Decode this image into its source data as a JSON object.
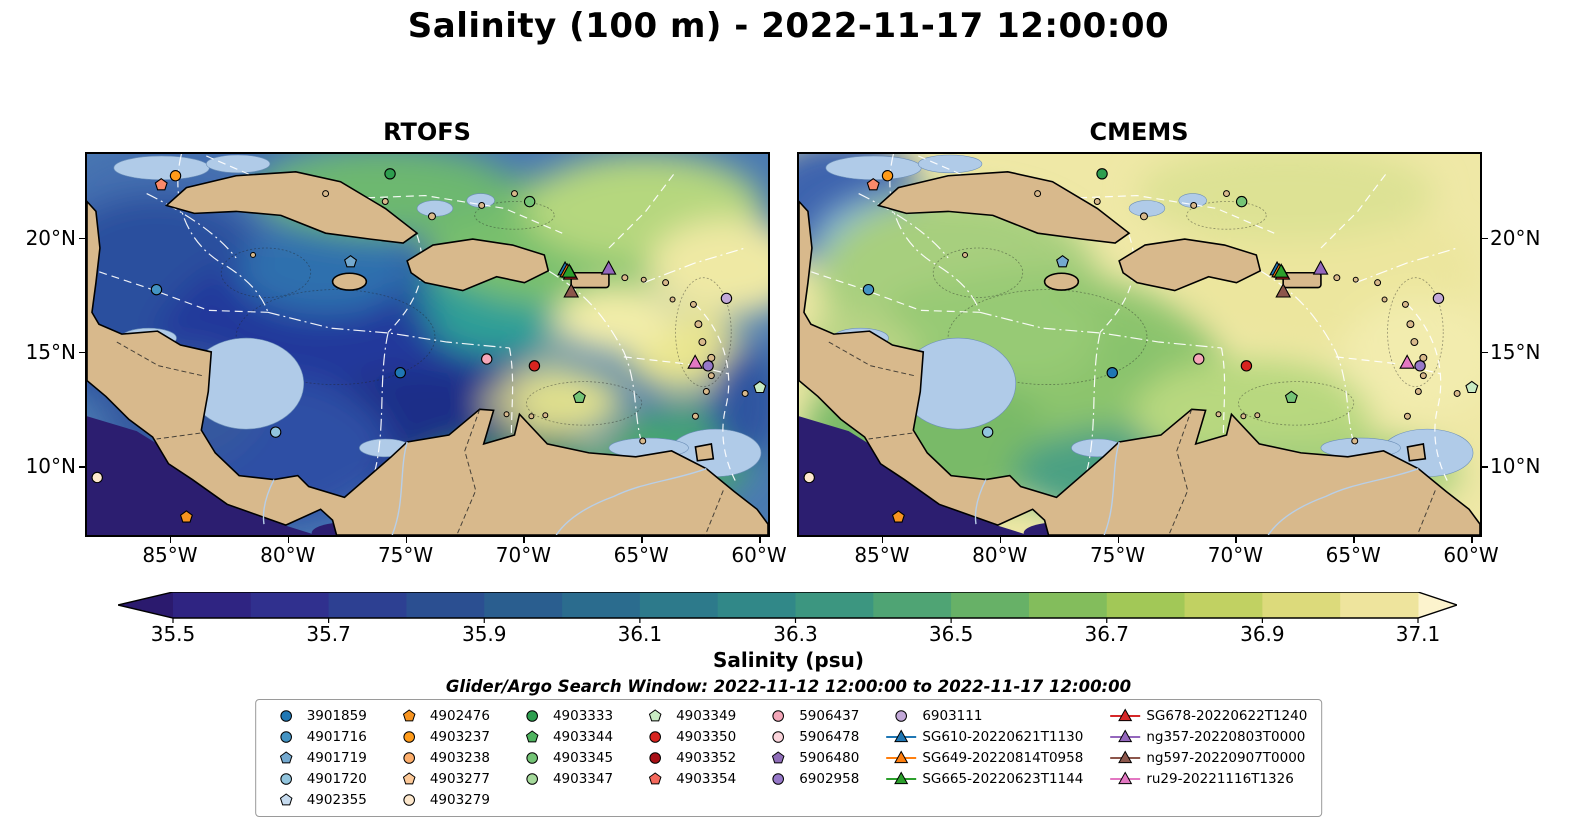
{
  "figure_title": "Salinity (100 m) - 2022-11-17 12:00:00",
  "panels": [
    {
      "title": "RTOFS"
    },
    {
      "title": "CMEMS"
    }
  ],
  "axes": {
    "lat_ticks": [
      {
        "label": "20°N",
        "pct": 22.3
      },
      {
        "label": "15°N",
        "pct": 51.9
      },
      {
        "label": "10°N",
        "pct": 81.6
      }
    ],
    "lon_ticks": [
      {
        "label": "85°W",
        "pct": 12.4
      },
      {
        "label": "80°W",
        "pct": 29.6
      },
      {
        "label": "75°W",
        "pct": 46.8
      },
      {
        "label": "70°W",
        "pct": 64.0
      },
      {
        "label": "65°W",
        "pct": 81.2
      },
      {
        "label": "60°W",
        "pct": 98.4
      }
    ]
  },
  "colorbar": {
    "label": "Salinity (psu)",
    "tick_labels": [
      "35.5",
      "35.7",
      "35.9",
      "36.1",
      "36.3",
      "36.5",
      "36.7",
      "36.9",
      "37.1"
    ],
    "under_color": "#2b1a6e",
    "over_color": "#fcf3cd",
    "segment_colors": [
      "#2f2482",
      "#30308e",
      "#2d4092",
      "#2b4f91",
      "#2a5e8f",
      "#2b6c8e",
      "#2d7a8b",
      "#318888",
      "#3c9680",
      "#4fa474",
      "#67b167",
      "#83bd5c",
      "#a2c857",
      "#c1d162",
      "#dcda7b",
      "#eee49d"
    ]
  },
  "search_window_text": "Glider/Argo Search Window: 2022-11-12 12:00:00 to 2022-11-17 12:00:00",
  "legend": {
    "columns": [
      {
        "items": [
          {
            "label": "3901859",
            "marker": "circle",
            "color": "#1f77b4"
          },
          {
            "label": "4901716",
            "marker": "circle",
            "color": "#4393c3"
          },
          {
            "label": "4901719",
            "marker": "pentagon",
            "color": "#74a9cf"
          },
          {
            "label": "4901720",
            "marker": "circle",
            "color": "#92c5de"
          },
          {
            "label": "4902355",
            "marker": "pentagon",
            "color": "#c6dbef"
          }
        ]
      },
      {
        "items": [
          {
            "label": "4902476",
            "marker": "pentagon",
            "color": "#f79420"
          },
          {
            "label": "4903237",
            "marker": "circle",
            "color": "#ff9b1a"
          },
          {
            "label": "4903238",
            "marker": "circle",
            "color": "#fdae6b"
          },
          {
            "label": "4903277",
            "marker": "pentagon",
            "color": "#fdc998"
          },
          {
            "label": "4903279",
            "marker": "circle",
            "color": "#fde8cd"
          }
        ]
      },
      {
        "items": [
          {
            "label": "4903333",
            "marker": "circle",
            "color": "#2e9e4f"
          },
          {
            "label": "4903344",
            "marker": "pentagon",
            "color": "#4fb35f"
          },
          {
            "label": "4903345",
            "marker": "circle",
            "color": "#74c476"
          },
          {
            "label": "4903347",
            "marker": "circle",
            "color": "#a5d99b"
          }
        ]
      },
      {
        "items": [
          {
            "label": "4903349",
            "marker": "pentagon",
            "color": "#c9ecc3"
          },
          {
            "label": "4903350",
            "marker": "circle",
            "color": "#d8241f"
          },
          {
            "label": "4903352",
            "marker": "circle",
            "color": "#a81016"
          },
          {
            "label": "4903354",
            "marker": "pentagon",
            "color": "#f4695c"
          }
        ]
      },
      {
        "items": [
          {
            "label": "5906437",
            "marker": "circle",
            "color": "#f4a7b9"
          },
          {
            "label": "5906478",
            "marker": "circle",
            "color": "#fbd5dc"
          },
          {
            "label": "5906480",
            "marker": "pentagon",
            "color": "#8f6db8"
          },
          {
            "label": "6902958",
            "marker": "circle",
            "color": "#9678c8"
          }
        ]
      },
      {
        "items": [
          {
            "label": "6903111",
            "marker": "circle",
            "color": "#c2a8d8"
          },
          {
            "label": "SG610-20220621T1130",
            "marker": "line-triangle",
            "color": "#1f77b4"
          },
          {
            "label": "SG649-20220814T0958",
            "marker": "line-triangle",
            "color": "#ff7f0e"
          },
          {
            "label": "SG665-20220623T1144",
            "marker": "line-triangle",
            "color": "#2ca02c"
          }
        ]
      },
      {
        "items": [
          {
            "label": "SG678-20220622T1240",
            "marker": "line-triangle",
            "color": "#d62728"
          },
          {
            "label": "ng357-20220803T0000",
            "marker": "line-triangle",
            "color": "#9467bd"
          },
          {
            "label": "ng597-20220907T0000",
            "marker": "line-triangle",
            "color": "#8c564b"
          },
          {
            "label": "ru29-20221116T1326",
            "marker": "line-triangle",
            "color": "#e377c2"
          }
        ]
      }
    ]
  },
  "map_markers": [
    {
      "shape": "pentagon",
      "color": "#fb8a6a",
      "x": 10.9,
      "y": 8.1
    },
    {
      "shape": "circle",
      "color": "#ff9b1a",
      "x": 13.0,
      "y": 5.7
    },
    {
      "shape": "circle",
      "color": "#2e9e4f",
      "x": 44.5,
      "y": 5.2
    },
    {
      "shape": "circle",
      "color": "#74c476",
      "x": 65.0,
      "y": 12.5
    },
    {
      "shape": "pentagon",
      "color": "#74a9cf",
      "x": 38.7,
      "y": 28.3
    },
    {
      "shape": "circle",
      "color": "#4393c3",
      "x": 10.2,
      "y": 35.6
    },
    {
      "shape": "triangle",
      "color": "#1f77b4",
      "x": 70.2,
      "y": 30.3
    },
    {
      "shape": "triangle",
      "color": "#ff7f0e",
      "x": 70.5,
      "y": 30.8
    },
    {
      "shape": "triangle",
      "color": "#d62728",
      "x": 71.0,
      "y": 31.4
    },
    {
      "shape": "triangle",
      "color": "#2ca02c",
      "x": 70.8,
      "y": 30.9
    },
    {
      "shape": "triangle",
      "color": "#9467bd",
      "x": 76.6,
      "y": 30.1
    },
    {
      "shape": "triangle",
      "color": "#8c564b",
      "x": 71.1,
      "y": 36.1
    },
    {
      "shape": "circle",
      "color": "#c2a8d8",
      "x": 93.9,
      "y": 37.9
    },
    {
      "shape": "circle",
      "color": "#f4a7b9",
      "x": 58.7,
      "y": 53.8
    },
    {
      "shape": "circle",
      "color": "#d8241f",
      "x": 65.7,
      "y": 55.6
    },
    {
      "shape": "circle",
      "color": "#1f77b4",
      "x": 46.0,
      "y": 57.4
    },
    {
      "shape": "triangle",
      "color": "#e377c2",
      "x": 89.3,
      "y": 54.8
    },
    {
      "shape": "circle",
      "color": "#9678c8",
      "x": 91.2,
      "y": 55.6
    },
    {
      "shape": "pentagon",
      "color": "#74c476",
      "x": 72.3,
      "y": 63.9
    },
    {
      "shape": "pentagon",
      "color": "#c9ecc3",
      "x": 98.8,
      "y": 61.3
    },
    {
      "shape": "circle",
      "color": "#92c5de",
      "x": 27.7,
      "y": 73.0
    },
    {
      "shape": "circle",
      "color": "#fde8cd",
      "x": 1.5,
      "y": 84.9
    },
    {
      "shape": "pentagon",
      "color": "#f79420",
      "x": 14.6,
      "y": 95.3
    }
  ],
  "map_colors": {
    "land": "#d8b98c",
    "shallow_water": "#b0cbe8",
    "pacific_deep": "#2c1e70",
    "coastline": "#000000",
    "boundary_lines": "#ffffff"
  },
  "chart_data": {
    "type": "heatmap",
    "subtype": "geographic salinity field comparison, two map panels sharing one colorbar",
    "title": "Salinity (100 m) - 2022-11-17 12:00:00",
    "panels": [
      "RTOFS",
      "CMEMS"
    ],
    "x_axis": {
      "tick_labels": [
        "85°W",
        "80°W",
        "75°W",
        "70°W",
        "65°W",
        "60°W"
      ]
    },
    "y_axis": {
      "tick_labels": [
        "20°N",
        "15°N",
        "10°N"
      ]
    },
    "colorbar": {
      "label": "Salinity (psu)",
      "ticks": [
        35.5,
        35.7,
        35.9,
        36.1,
        36.3,
        36.5,
        36.7,
        36.9,
        37.1
      ],
      "extend": "both"
    },
    "annotation": "Glider/Argo Search Window: 2022-11-12 12:00:00 to 2022-11-17 12:00:00",
    "legend_entries": [
      "3901859",
      "4901716",
      "4901719",
      "4901720",
      "4902355",
      "4902476",
      "4903237",
      "4903238",
      "4903277",
      "4903279",
      "4903333",
      "4903344",
      "4903345",
      "4903347",
      "4903349",
      "4903350",
      "4903352",
      "4903354",
      "5906437",
      "5906478",
      "5906480",
      "6902958",
      "6903111",
      "SG610-20220621T1130",
      "SG649-20220814T0958",
      "SG665-20220623T1144",
      "SG678-20220622T1240",
      "ng357-20220803T0000",
      "ng597-20220907T0000",
      "ru29-20221116T1326"
    ]
  }
}
